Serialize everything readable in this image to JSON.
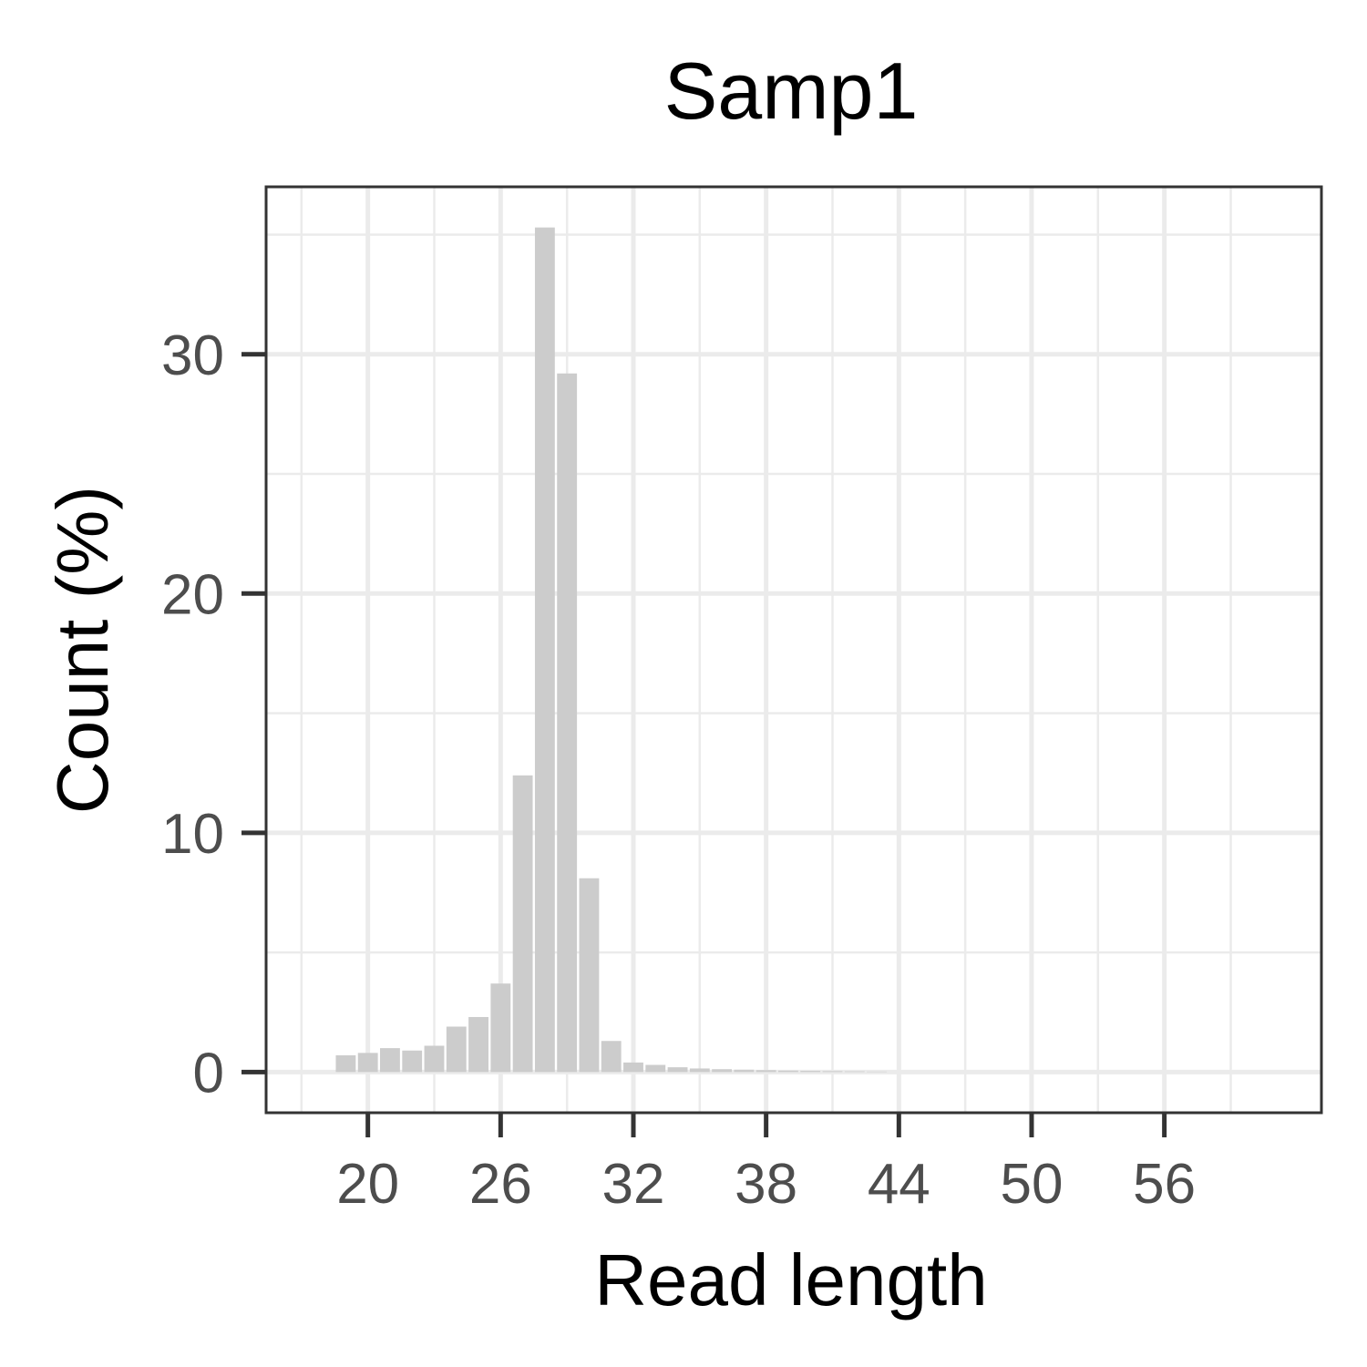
{
  "chart_data": {
    "type": "bar",
    "title": "Samp1",
    "xlabel": "Read length",
    "ylabel": "Count (%)",
    "x": [
      19,
      20,
      21,
      22,
      23,
      24,
      25,
      26,
      27,
      28,
      29,
      30,
      31,
      32,
      33,
      34,
      35,
      36,
      37,
      38,
      39,
      40,
      41,
      42,
      43
    ],
    "values": [
      0.7,
      0.8,
      1.0,
      0.9,
      1.1,
      1.9,
      2.3,
      3.7,
      12.4,
      35.3,
      29.2,
      8.1,
      1.3,
      0.4,
      0.3,
      0.2,
      0.15,
      0.12,
      0.1,
      0.08,
      0.06,
      0.05,
      0.04,
      0.03,
      0.02
    ],
    "xlim": [
      15.4,
      63.1
    ],
    "ylim": [
      -1.7,
      37.0
    ],
    "xticks": [
      20,
      26,
      32,
      38,
      44,
      50,
      56
    ],
    "yticks": [
      0,
      10,
      20,
      30
    ],
    "grid": true,
    "colors": {
      "bar": "#cccccc",
      "grid": "#ebebeb",
      "axis": "#333333",
      "tick_label": "#4d4d4d"
    }
  }
}
